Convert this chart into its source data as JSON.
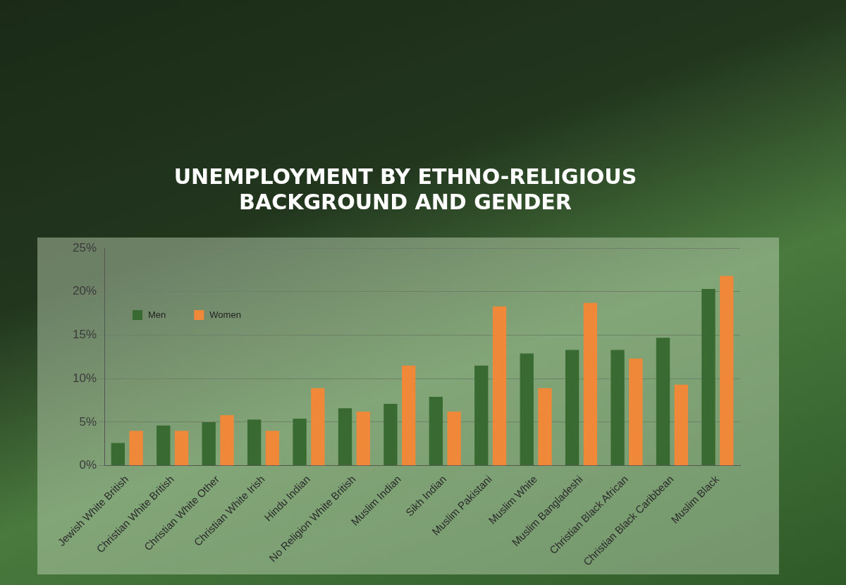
{
  "chart_data": {
    "type": "bar",
    "title": [
      "UNEMPLOYMENT BY ETHNO-RELIGIOUS",
      "BACKGROUND AND GENDER"
    ],
    "categories": [
      "Jewish White British",
      "Christian White British",
      "Christian White Other",
      "Christian White Irish",
      "Hindu Indian",
      "No Religion White British",
      "Muslim Indian",
      "Sikh Indian",
      "Muslim Pakistani",
      "Muslim White",
      "Muslim Bangladeshi",
      "Christian Black African",
      "Christian Black Caribbean",
      "Muslim Black"
    ],
    "series": [
      {
        "name": "Men",
        "color": "#386a32",
        "values": [
          2.6,
          4.6,
          5.0,
          5.3,
          5.4,
          6.6,
          7.1,
          7.9,
          11.5,
          12.9,
          13.3,
          13.3,
          14.7,
          20.3
        ]
      },
      {
        "name": "Women",
        "color": "#f0883a",
        "values": [
          4.0,
          4.0,
          5.8,
          4.0,
          8.9,
          6.2,
          11.5,
          6.2,
          18.3,
          8.9,
          18.7,
          12.3,
          9.3,
          21.8
        ]
      }
    ],
    "ylim": [
      0,
      25
    ],
    "yticks": [
      {
        "value": 0,
        "label": "0%"
      },
      {
        "value": 5,
        "label": "5%"
      },
      {
        "value": 10,
        "label": "10%"
      },
      {
        "value": 15,
        "label": "15%"
      },
      {
        "value": 20,
        "label": "20%"
      },
      {
        "value": 25,
        "label": "25%"
      }
    ],
    "grid": "y",
    "legend": "top left"
  }
}
